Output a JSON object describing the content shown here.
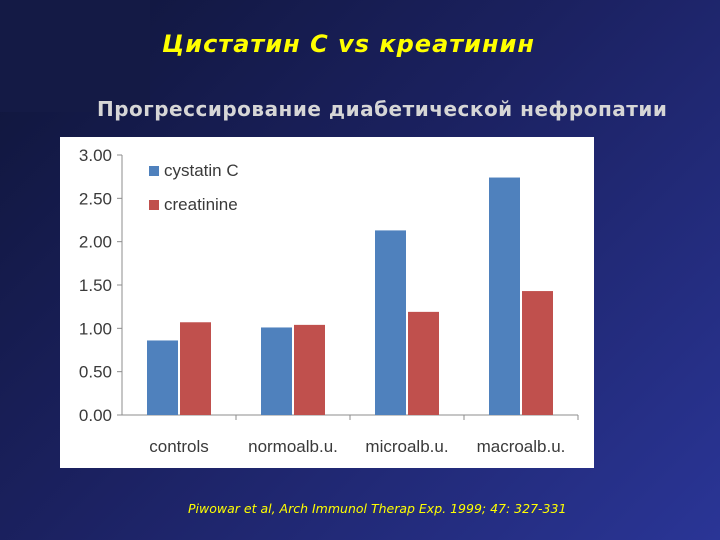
{
  "slide": {
    "title": "Цистатин С vs креатинин",
    "subtitle": "Прогрессирование диабетической нефропатии",
    "citation": "Piwowar et al, Arch Immunol Therap Exp. 1999; 47: 327-331"
  },
  "chart_data": {
    "type": "bar",
    "categories": [
      "controls",
      "normoalb.u.",
      "microalb.u.",
      "macroalb.u."
    ],
    "series": [
      {
        "name": "cystatin C",
        "color": "#4f81bd",
        "values": [
          0.86,
          1.01,
          2.13,
          2.74
        ]
      },
      {
        "name": "creatinine",
        "color": "#c0504d",
        "values": [
          1.07,
          1.04,
          1.19,
          1.43
        ]
      }
    ],
    "ylim": [
      0,
      3.0
    ],
    "yticks": [
      "0.00",
      "0.50",
      "1.00",
      "1.50",
      "2.00",
      "2.50",
      "3.00"
    ],
    "grid": false,
    "legend_position": "top-left"
  }
}
